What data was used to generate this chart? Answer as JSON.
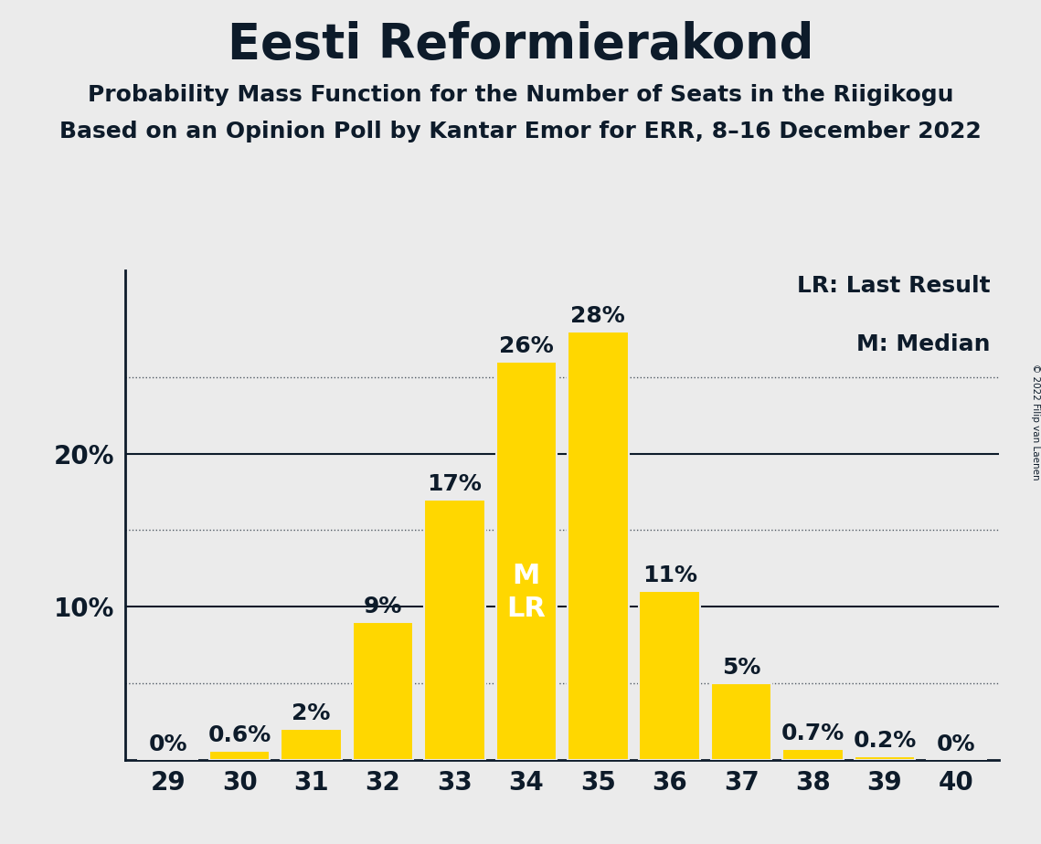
{
  "title": "Eesti Reformierakond",
  "subtitle1": "Probability Mass Function for the Number of Seats in the Riigikogu",
  "subtitle2": "Based on an Opinion Poll by Kantar Emor for ERR, 8–16 December 2022",
  "copyright_text": "© 2022 Filip van Laenen",
  "categories": [
    29,
    30,
    31,
    32,
    33,
    34,
    35,
    36,
    37,
    38,
    39,
    40
  ],
  "values": [
    0.0,
    0.6,
    2.0,
    9.0,
    17.0,
    26.0,
    28.0,
    11.0,
    5.0,
    0.7,
    0.2,
    0.0
  ],
  "labels": [
    "0%",
    "0.6%",
    "2%",
    "9%",
    "17%",
    "26%",
    "28%",
    "11%",
    "5%",
    "0.7%",
    "0.2%",
    "0%"
  ],
  "bar_color": "#FFD700",
  "background_color": "#EBEBEB",
  "text_color": "#0D1B2A",
  "median_seat": 34,
  "lr_seat": 34,
  "legend_lr": "LR: Last Result",
  "legend_m": "M: Median",
  "ylim": [
    0,
    32
  ],
  "solid_yticks": [
    10,
    20
  ],
  "dotted_yticks": [
    5,
    15,
    25
  ],
  "title_fontsize": 38,
  "subtitle_fontsize": 18,
  "tick_fontsize": 20,
  "bar_label_fontsize": 18,
  "bar_label_inside_fontsize": 22,
  "legend_fontsize": 18
}
